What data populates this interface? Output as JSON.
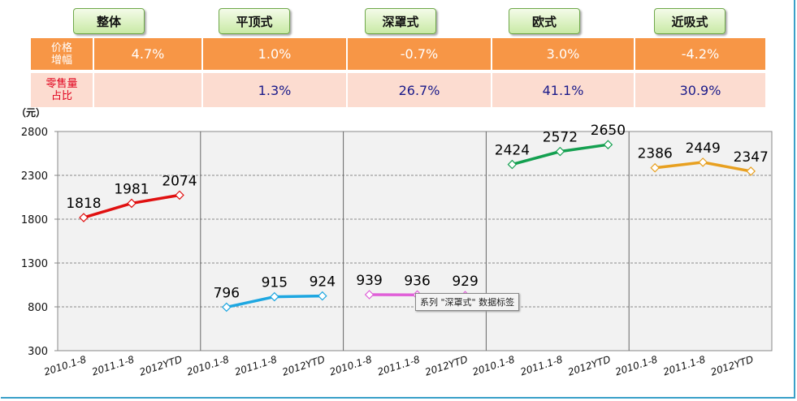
{
  "buttons": [
    "整体",
    "平顶式",
    "深罩式",
    "欧式",
    "近吸式"
  ],
  "table": {
    "row1_header": [
      "价格",
      "增幅"
    ],
    "row1_values": [
      "4.7%",
      "1.0%",
      "-0.7%",
      "3.0%",
      "-4.2%"
    ],
    "row2_header": [
      "零售量",
      "占比"
    ],
    "row2_values": [
      "",
      "1.3%",
      "26.7%",
      "41.1%",
      "30.9%"
    ]
  },
  "chart_data": {
    "type": "line",
    "ylabel": "（元）",
    "ylim": [
      300,
      2800
    ],
    "yticks": [
      300,
      800,
      1300,
      1800,
      2300,
      2800
    ],
    "grid": true,
    "categories": [
      "2010.1-8",
      "2011.1-8",
      "2012YTD"
    ],
    "series": [
      {
        "name": "整体",
        "values": [
          1818,
          1981,
          2074
        ],
        "color": "#e01010"
      },
      {
        "name": "平顶式",
        "values": [
          796,
          915,
          924
        ],
        "color": "#1ea7e1"
      },
      {
        "name": "深罩式",
        "values": [
          939,
          936,
          929
        ],
        "color": "#e060d8"
      },
      {
        "name": "欧式",
        "values": [
          2424,
          2572,
          2650
        ],
        "color": "#14a050"
      },
      {
        "name": "近吸式",
        "values": [
          2386,
          2449,
          2347
        ],
        "color": "#e8a020"
      }
    ]
  },
  "tooltip": "系列 \"深罩式\" 数据标签"
}
